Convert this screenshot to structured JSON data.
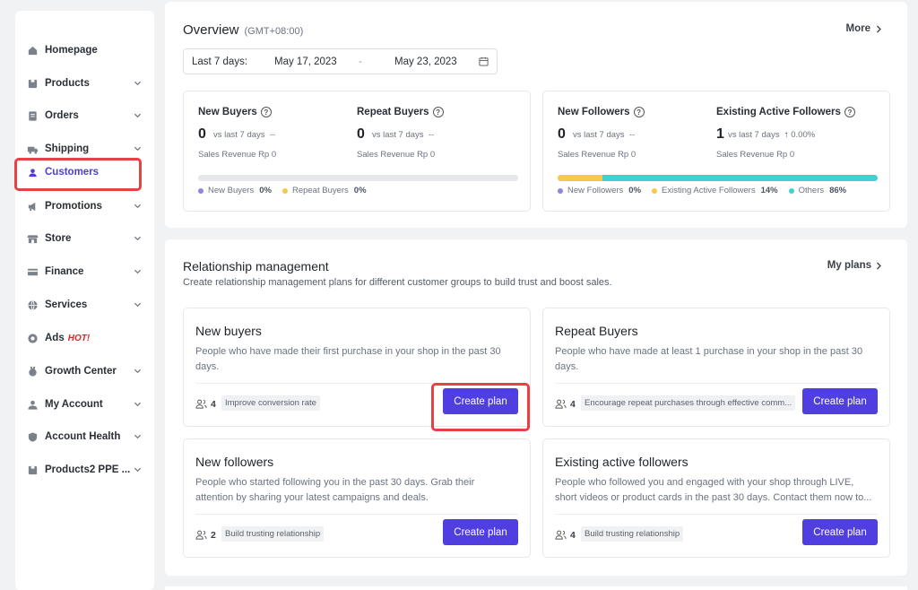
{
  "sidebar": {
    "items": [
      {
        "label": "Homepage",
        "icon": "home-icon",
        "chevron": false
      },
      {
        "label": "Products",
        "icon": "products-icon",
        "chevron": true
      },
      {
        "label": "Orders",
        "icon": "orders-icon",
        "chevron": true
      },
      {
        "label": "Shipping",
        "icon": "truck-icon",
        "chevron": true
      },
      {
        "label": "Customers",
        "icon": "user-icon",
        "chevron": false,
        "active": true
      },
      {
        "label": "Promotions",
        "icon": "megaphone-icon",
        "chevron": true
      },
      {
        "label": "Store",
        "icon": "store-icon",
        "chevron": true
      },
      {
        "label": "Finance",
        "icon": "finance-icon",
        "chevron": true
      },
      {
        "label": "Services",
        "icon": "globe-icon",
        "chevron": true
      },
      {
        "label": "Ads",
        "icon": "ads-icon",
        "chevron": false,
        "badge": "HOT!"
      },
      {
        "label": "Growth Center",
        "icon": "medal-icon",
        "chevron": true
      },
      {
        "label": "My Account",
        "icon": "account-icon",
        "chevron": true
      },
      {
        "label": "Account Health",
        "icon": "shield-icon",
        "chevron": true
      },
      {
        "label": "Products2 PPE ...",
        "icon": "products-icon",
        "chevron": true
      }
    ]
  },
  "overview": {
    "title": "Overview",
    "timezone": "(GMT+08:00)",
    "more_label": "More",
    "date_range": {
      "prefix": "Last 7 days:",
      "start": "May 17, 2023",
      "separator": "-",
      "end": "May 23, 2023"
    },
    "buyers": {
      "new": {
        "label": "New Buyers",
        "value": "0",
        "vs": "vs last 7 days",
        "change": "--",
        "revenue": "Sales Revenue Rp 0"
      },
      "repeat": {
        "label": "Repeat Buyers",
        "value": "0",
        "vs": "vs last 7 days",
        "change": "--",
        "revenue": "Sales Revenue Rp 0"
      },
      "legend": [
        {
          "label": "New Buyers",
          "pct": "0%",
          "color": "#8b86e0"
        },
        {
          "label": "Repeat Buyers",
          "pct": "0%",
          "color": "#f5c94a"
        }
      ]
    },
    "followers": {
      "new": {
        "label": "New Followers",
        "value": "0",
        "vs": "vs last 7 days",
        "change": "--",
        "revenue": "Sales Revenue Rp 0"
      },
      "existing": {
        "label": "Existing Active Followers",
        "value": "1",
        "vs": "vs last 7 days",
        "change": "0.00%",
        "revenue": "Sales Revenue Rp 0"
      },
      "legend": [
        {
          "label": "New Followers",
          "pct": "0%",
          "color": "#8b86e0"
        },
        {
          "label": "Existing Active Followers",
          "pct": "14%",
          "color": "#f5c94a"
        },
        {
          "label": "Others",
          "pct": "86%",
          "color": "#3fd3cf"
        }
      ],
      "bar_fractions": {
        "new": 0,
        "existing": 0.14,
        "others": 0.86
      }
    }
  },
  "relationship": {
    "title": "Relationship management",
    "subtitle": "Create relationship management plans for different customer groups to build trust and boost sales.",
    "my_plans_label": "My plans",
    "plans": [
      {
        "title": "New buyers",
        "desc": "People who have made their first purchase in your shop in the past 30 days.",
        "count": "4",
        "tag": "Improve conversion rate",
        "button": "Create plan"
      },
      {
        "title": "Repeat Buyers",
        "desc": "People who have made at least 1 purchase in your shop in the past 30 days.",
        "count": "4",
        "tag": "Encourage repeat purchases through effective comm...",
        "button": "Create plan"
      },
      {
        "title": "New followers",
        "desc": "People who started following you in the past 30 days. Grab their attention by sharing your latest campaigns and deals.",
        "count": "2",
        "tag": "Build trusting relationship",
        "button": "Create plan"
      },
      {
        "title": "Existing active followers",
        "desc": "People who followed you and engaged with your shop through LIVE, short videos or product cards in the past 30 days. Contact them now to...",
        "count": "4",
        "tag": "Build trusting relationship",
        "button": "Create plan"
      }
    ]
  },
  "colors": {
    "accent": "#4f3ee0",
    "highlight": "#e54242",
    "active_nav": "#4c3fd8"
  }
}
